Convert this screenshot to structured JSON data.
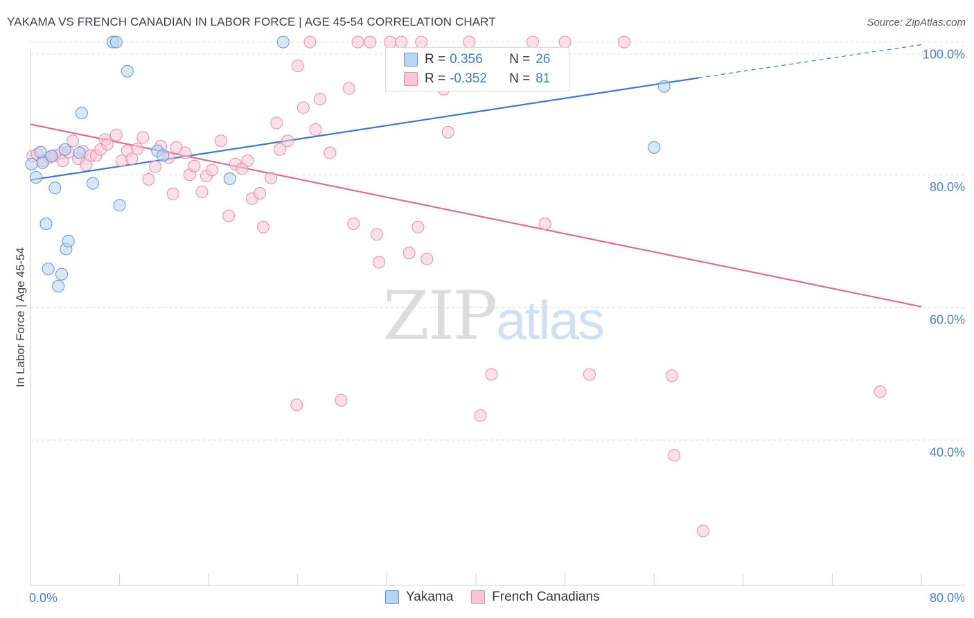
{
  "title": "YAKAMA VS FRENCH CANADIAN IN LABOR FORCE | AGE 45-54 CORRELATION CHART",
  "source": "Source: ZipAtlas.com",
  "watermark": {
    "zip": "ZIP",
    "atlas": "atlas"
  },
  "legend_top": [
    {
      "r_label": "R =",
      "r_value": "0.356",
      "n_label": "N =",
      "n_value": "26"
    },
    {
      "r_label": "R =",
      "r_value": "-0.352",
      "n_label": "N =",
      "n_value": "81"
    }
  ],
  "legend_bottom": [
    {
      "label": "Yakama"
    },
    {
      "label": "French Canadians"
    }
  ],
  "colors": {
    "yakama_fill": "#b8d3f3",
    "yakama_stroke": "#5e93d8",
    "yakama_line": "#3b78d0",
    "french_fill": "#f8c6d5",
    "french_stroke": "#e98aa8",
    "french_line": "#e0699a",
    "grid": "#dcdcdc",
    "tick_text": "#4a7fd0"
  },
  "chart_data": {
    "type": "scatter",
    "title": "YAKAMA VS FRENCH CANADIAN IN LABOR FORCE | AGE 45-54 CORRELATION CHART",
    "xlabel": "",
    "ylabel": "In Labor Force | Age 45-54",
    "xlim": [
      0,
      80
    ],
    "ylim": [
      18,
      101.5
    ],
    "x_tick_labels": [
      "0.0%",
      "80.0%"
    ],
    "y_ticks": [
      40,
      60,
      80,
      100
    ],
    "y_tick_labels": [
      "40.0%",
      "60.0%",
      "80.0%",
      "100.0%"
    ],
    "grid": true,
    "legend": "top-center",
    "series": [
      {
        "name": "Yakama",
        "r": 0.356,
        "n": 26,
        "trend": {
          "x_start": 0,
          "y_start": 79.2,
          "x_end": 60,
          "y_end": 94.6,
          "dashed_to_x": 80,
          "dashed_to_y": 99.6
        },
        "points": [
          [
            0.1,
            81.6
          ],
          [
            0.5,
            79.6
          ],
          [
            0.9,
            83.4
          ],
          [
            1.1,
            81.8
          ],
          [
            1.4,
            72.6
          ],
          [
            1.6,
            65.8
          ],
          [
            1.9,
            82.8
          ],
          [
            2.2,
            78.0
          ],
          [
            2.5,
            63.2
          ],
          [
            2.8,
            65.0
          ],
          [
            3.2,
            68.8
          ],
          [
            3.4,
            70.0
          ],
          [
            3.1,
            83.8
          ],
          [
            4.4,
            83.3
          ],
          [
            4.6,
            89.3
          ],
          [
            5.6,
            78.7
          ],
          [
            7.4,
            100.0
          ],
          [
            7.7,
            100.0
          ],
          [
            8.0,
            75.4
          ],
          [
            8.7,
            95.6
          ],
          [
            11.4,
            83.6
          ],
          [
            11.9,
            82.9
          ],
          [
            17.9,
            79.4
          ],
          [
            22.7,
            100.0
          ],
          [
            56.0,
            84.1
          ],
          [
            56.9,
            93.3
          ]
        ]
      },
      {
        "name": "French Canadians",
        "r": -0.352,
        "n": 81,
        "trend": {
          "x_start": 0,
          "y_start": 87.6,
          "x_end": 80,
          "y_end": 60.1
        },
        "points": [
          [
            0.2,
            82.8
          ],
          [
            0.6,
            83.1
          ],
          [
            1.1,
            82.1
          ],
          [
            1.7,
            82.6
          ],
          [
            2.2,
            82.9
          ],
          [
            2.8,
            83.3
          ],
          [
            2.9,
            82.1
          ],
          [
            3.4,
            83.4
          ],
          [
            3.8,
            85.1
          ],
          [
            4.3,
            82.4
          ],
          [
            4.7,
            83.5
          ],
          [
            5.0,
            81.5
          ],
          [
            5.4,
            82.9
          ],
          [
            5.9,
            82.9
          ],
          [
            6.3,
            83.8
          ],
          [
            6.7,
            85.3
          ],
          [
            6.9,
            84.6
          ],
          [
            7.7,
            86.0
          ],
          [
            8.2,
            82.1
          ],
          [
            8.7,
            83.6
          ],
          [
            9.1,
            82.4
          ],
          [
            9.6,
            83.9
          ],
          [
            10.1,
            85.6
          ],
          [
            10.6,
            79.3
          ],
          [
            11.2,
            81.2
          ],
          [
            11.7,
            84.3
          ],
          [
            12.4,
            82.6
          ],
          [
            12.8,
            77.1
          ],
          [
            13.1,
            84.1
          ],
          [
            13.9,
            83.3
          ],
          [
            14.3,
            80.0
          ],
          [
            14.7,
            81.3
          ],
          [
            15.4,
            77.4
          ],
          [
            15.8,
            79.8
          ],
          [
            16.3,
            80.7
          ],
          [
            17.1,
            85.1
          ],
          [
            17.8,
            73.8
          ],
          [
            18.4,
            81.6
          ],
          [
            19.0,
            80.9
          ],
          [
            19.5,
            82.1
          ],
          [
            19.9,
            76.4
          ],
          [
            20.6,
            77.2
          ],
          [
            20.9,
            72.1
          ],
          [
            21.6,
            79.5
          ],
          [
            22.1,
            87.8
          ],
          [
            22.4,
            83.8
          ],
          [
            23.1,
            85.1
          ],
          [
            23.9,
            45.3
          ],
          [
            24.0,
            96.4
          ],
          [
            24.5,
            90.1
          ],
          [
            25.1,
            100.0
          ],
          [
            25.6,
            86.8
          ],
          [
            26.0,
            91.4
          ],
          [
            26.9,
            83.3
          ],
          [
            27.9,
            46.0
          ],
          [
            28.6,
            93.0
          ],
          [
            29.0,
            72.6
          ],
          [
            29.4,
            100.0
          ],
          [
            30.5,
            100.0
          ],
          [
            31.1,
            71.0
          ],
          [
            31.3,
            66.8
          ],
          [
            32.3,
            100.0
          ],
          [
            33.3,
            100.0
          ],
          [
            34.0,
            68.2
          ],
          [
            34.8,
            72.1
          ],
          [
            35.1,
            100.0
          ],
          [
            35.6,
            67.3
          ],
          [
            37.5,
            86.4
          ],
          [
            39.4,
            100.0
          ],
          [
            40.4,
            43.7
          ],
          [
            41.4,
            49.9
          ],
          [
            45.1,
            100.0
          ],
          [
            46.2,
            72.6
          ],
          [
            48.0,
            100.0
          ],
          [
            50.2,
            49.9
          ],
          [
            53.3,
            100.0
          ],
          [
            57.6,
            49.7
          ],
          [
            57.8,
            37.7
          ],
          [
            60.4,
            26.3
          ],
          [
            76.3,
            47.3
          ],
          [
            37.1,
            92.9
          ]
        ]
      }
    ]
  }
}
